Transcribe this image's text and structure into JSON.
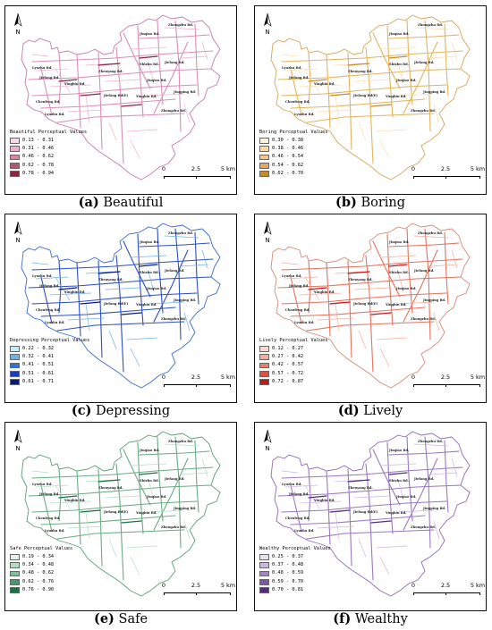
{
  "north_label": "N",
  "panels": [
    {
      "id": "a",
      "caption_letter": "(a)",
      "caption_text": "Beautiful",
      "legend_title": "Beautiful Perceptual Values",
      "legend": [
        {
          "range": "0.13 - 0.31",
          "color": "#f6d9ea"
        },
        {
          "range": "0.31 - 0.46",
          "color": "#eab2cc"
        },
        {
          "range": "0.46 - 0.62",
          "color": "#d9869f"
        },
        {
          "range": "0.62 - 0.78",
          "color": "#b9566f"
        },
        {
          "range": "0.78 - 0.94",
          "color": "#8c2440"
        }
      ],
      "road_color": "#d98eb7",
      "outline_color": "#c87aa6",
      "scale_labels": [
        "0",
        "2.5",
        "5 km"
      ]
    },
    {
      "id": "b",
      "caption_letter": "(b)",
      "caption_text": "Boring",
      "legend_title": "Boring Perceptual Values",
      "legend": [
        {
          "range": "0.30 - 0.38",
          "color": "#fdf0d8"
        },
        {
          "range": "0.38 - 0.46",
          "color": "#f8dcae"
        },
        {
          "range": "0.46 - 0.54",
          "color": "#f3c587"
        },
        {
          "range": "0.54 - 0.62",
          "color": "#eba45a"
        },
        {
          "range": "0.62 - 0.70",
          "color": "#c88a2c"
        }
      ],
      "road_color": "#e1b35e",
      "outline_color": "#d3a65a",
      "scale_labels": [
        "0",
        "2.5",
        "5 km"
      ]
    },
    {
      "id": "c",
      "caption_letter": "(c)",
      "caption_text": "Depressing",
      "legend_title": "Depressing Perceptual Values",
      "legend": [
        {
          "range": "0.22 - 0.32",
          "color": "#c7eaf5"
        },
        {
          "range": "0.32 - 0.41",
          "color": "#6fb2e6"
        },
        {
          "range": "0.41 - 0.51",
          "color": "#2d74d3"
        },
        {
          "range": "0.51 - 0.61",
          "color": "#1c3eb2"
        },
        {
          "range": "0.61 - 0.71",
          "color": "#0a1a7c"
        }
      ],
      "road_color": "#2b4fc4",
      "outline_color": "#3a6ad0",
      "scale_labels": [
        "0",
        "2.5",
        "5 km"
      ]
    },
    {
      "id": "d",
      "caption_letter": "(d)",
      "caption_text": "Lively",
      "legend_title": "Lively Perceptual Values",
      "legend": [
        {
          "range": "0.12 - 0.27",
          "color": "#fad9d0"
        },
        {
          "range": "0.27 - 0.42",
          "color": "#f2ad9b"
        },
        {
          "range": "0.42 - 0.57",
          "color": "#e9806b"
        },
        {
          "range": "0.57 - 0.72",
          "color": "#dd5142"
        },
        {
          "range": "0.72 - 0.87",
          "color": "#c6151a"
        }
      ],
      "road_color": "#e2735e",
      "outline_color": "#d48a78",
      "scale_labels": [
        "0",
        "2.5",
        "5 km"
      ]
    },
    {
      "id": "e",
      "caption_letter": "(e)",
      "caption_text": "Safe",
      "legend_title": "Safe Perceptual Values",
      "legend": [
        {
          "range": "0.19 - 0.34",
          "color": "#e1f3ea"
        },
        {
          "range": "0.34 - 0.48",
          "color": "#b3dcc3"
        },
        {
          "range": "0.48 - 0.62",
          "color": "#7fbf99"
        },
        {
          "range": "0.62 - 0.76",
          "color": "#47996b"
        },
        {
          "range": "0.76 - 0.90",
          "color": "#1d7040"
        }
      ],
      "road_color": "#6aab84",
      "outline_color": "#5a9e76",
      "scale_labels": [
        "0",
        "2.5",
        "5 km"
      ]
    },
    {
      "id": "f",
      "caption_letter": "(f)",
      "caption_text": "Wealthy",
      "legend_title": "Wealthy Perceptual Values",
      "legend": [
        {
          "range": "0.25 - 0.37",
          "color": "#ebe0f2"
        },
        {
          "range": "0.37 - 0.48",
          "color": "#ccb6e0"
        },
        {
          "range": "0.48 - 0.59",
          "color": "#a884c7"
        },
        {
          "range": "0.59 - 0.70",
          "color": "#7f56a7"
        },
        {
          "range": "0.70 - 0.81",
          "color": "#552a80"
        }
      ],
      "road_color": "#9a78c0",
      "outline_color": "#8f6bb5",
      "scale_labels": [
        "0",
        "2.5",
        "5 km"
      ]
    }
  ],
  "road_labels": [
    "Zhongzhu Rd.",
    "Jiuqiao Rd.",
    "Chenfeng Rd.",
    "Jiefang Rd.",
    "Yingbin Rd.",
    "Jingping Rd.",
    "Jiefang Rd(E)",
    "Lyuzhu Rd.",
    "Zhenyang Rd.",
    "Shizhu Rd."
  ]
}
